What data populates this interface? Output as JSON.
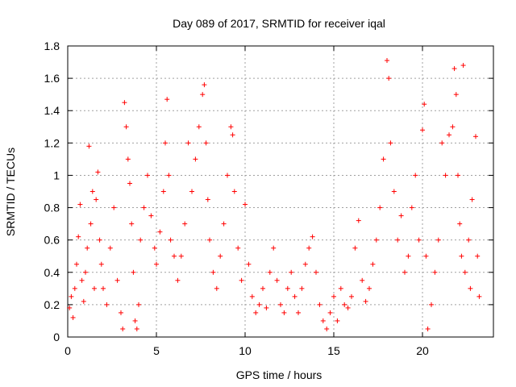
{
  "chart_data": {
    "type": "scatter",
    "title": "Day 089 of 2017, SRMTID for receiver iqal",
    "xlabel": "GPS time / hours",
    "ylabel": "SRMTID / TECUs",
    "xlim": [
      0,
      24
    ],
    "ylim": [
      0,
      1.8
    ],
    "xticks": [
      0,
      5,
      10,
      15,
      20
    ],
    "xtick_labels": [
      "0",
      "5",
      "10",
      "15",
      "20"
    ],
    "yticks": [
      0,
      0.2,
      0.4,
      0.6,
      0.8,
      1.0,
      1.2,
      1.4,
      1.6,
      1.8
    ],
    "ytick_labels": [
      "0",
      "0.2",
      "0.4",
      "0.6",
      "0.8",
      "1",
      "1.2",
      "1.4",
      "1.6",
      "1.8"
    ],
    "grid": true,
    "marker": "plus",
    "color": "#ff0000",
    "series": [
      {
        "name": "SRMTID",
        "points": [
          [
            0.1,
            0.18
          ],
          [
            0.2,
            0.25
          ],
          [
            0.3,
            0.12
          ],
          [
            0.4,
            0.3
          ],
          [
            0.5,
            0.45
          ],
          [
            0.6,
            0.62
          ],
          [
            0.7,
            0.82
          ],
          [
            0.8,
            0.35
          ],
          [
            0.9,
            0.22
          ],
          [
            1.0,
            0.4
          ],
          [
            1.1,
            0.55
          ],
          [
            1.2,
            1.18
          ],
          [
            1.3,
            0.7
          ],
          [
            1.4,
            0.9
          ],
          [
            1.5,
            0.3
          ],
          [
            1.6,
            0.85
          ],
          [
            1.7,
            1.02
          ],
          [
            1.8,
            0.6
          ],
          [
            1.9,
            0.45
          ],
          [
            2.0,
            0.3
          ],
          [
            2.2,
            0.2
          ],
          [
            2.4,
            0.55
          ],
          [
            2.6,
            0.8
          ],
          [
            2.8,
            0.35
          ],
          [
            3.0,
            0.15
          ],
          [
            3.1,
            0.05
          ],
          [
            3.2,
            1.45
          ],
          [
            3.3,
            1.3
          ],
          [
            3.4,
            1.1
          ],
          [
            3.5,
            0.95
          ],
          [
            3.6,
            0.7
          ],
          [
            3.7,
            0.4
          ],
          [
            3.8,
            0.1
          ],
          [
            3.9,
            0.05
          ],
          [
            4.0,
            0.2
          ],
          [
            4.1,
            0.6
          ],
          [
            4.3,
            0.8
          ],
          [
            4.5,
            1.0
          ],
          [
            4.7,
            0.75
          ],
          [
            4.9,
            0.55
          ],
          [
            5.0,
            0.45
          ],
          [
            5.2,
            0.65
          ],
          [
            5.4,
            0.9
          ],
          [
            5.5,
            1.2
          ],
          [
            5.6,
            1.47
          ],
          [
            5.7,
            1.0
          ],
          [
            5.8,
            0.6
          ],
          [
            6.0,
            0.5
          ],
          [
            6.2,
            0.35
          ],
          [
            6.4,
            0.5
          ],
          [
            6.6,
            0.7
          ],
          [
            6.8,
            1.2
          ],
          [
            7.0,
            0.9
          ],
          [
            7.2,
            1.1
          ],
          [
            7.4,
            1.3
          ],
          [
            7.6,
            1.5
          ],
          [
            7.7,
            1.56
          ],
          [
            7.8,
            1.2
          ],
          [
            7.9,
            0.85
          ],
          [
            8.0,
            0.6
          ],
          [
            8.2,
            0.4
          ],
          [
            8.4,
            0.3
          ],
          [
            8.6,
            0.5
          ],
          [
            8.8,
            0.7
          ],
          [
            9.0,
            1.0
          ],
          [
            9.2,
            1.3
          ],
          [
            9.3,
            1.25
          ],
          [
            9.4,
            0.9
          ],
          [
            9.6,
            0.55
          ],
          [
            9.8,
            0.35
          ],
          [
            10.0,
            0.82
          ],
          [
            10.2,
            0.45
          ],
          [
            10.4,
            0.25
          ],
          [
            10.6,
            0.15
          ],
          [
            10.8,
            0.2
          ],
          [
            11.0,
            0.3
          ],
          [
            11.2,
            0.18
          ],
          [
            11.4,
            0.4
          ],
          [
            11.6,
            0.55
          ],
          [
            11.8,
            0.35
          ],
          [
            12.0,
            0.2
          ],
          [
            12.2,
            0.15
          ],
          [
            12.4,
            0.3
          ],
          [
            12.6,
            0.4
          ],
          [
            12.8,
            0.25
          ],
          [
            13.0,
            0.15
          ],
          [
            13.2,
            0.3
          ],
          [
            13.4,
            0.45
          ],
          [
            13.6,
            0.55
          ],
          [
            13.8,
            0.62
          ],
          [
            14.0,
            0.4
          ],
          [
            14.2,
            0.2
          ],
          [
            14.4,
            0.1
          ],
          [
            14.6,
            0.05
          ],
          [
            14.8,
            0.15
          ],
          [
            15.0,
            0.25
          ],
          [
            15.2,
            0.1
          ],
          [
            15.4,
            0.3
          ],
          [
            15.6,
            0.2
          ],
          [
            15.8,
            0.18
          ],
          [
            16.0,
            0.25
          ],
          [
            16.2,
            0.55
          ],
          [
            16.4,
            0.72
          ],
          [
            16.6,
            0.35
          ],
          [
            16.8,
            0.22
          ],
          [
            17.0,
            0.3
          ],
          [
            17.2,
            0.45
          ],
          [
            17.4,
            0.6
          ],
          [
            17.6,
            0.8
          ],
          [
            17.8,
            1.1
          ],
          [
            18.0,
            1.71
          ],
          [
            18.1,
            1.6
          ],
          [
            18.2,
            1.2
          ],
          [
            18.4,
            0.9
          ],
          [
            18.6,
            0.6
          ],
          [
            18.8,
            0.75
          ],
          [
            19.0,
            0.4
          ],
          [
            19.2,
            0.5
          ],
          [
            19.4,
            0.8
          ],
          [
            19.6,
            1.0
          ],
          [
            19.8,
            0.6
          ],
          [
            20.0,
            1.28
          ],
          [
            20.1,
            1.44
          ],
          [
            20.2,
            0.5
          ],
          [
            20.3,
            0.05
          ],
          [
            20.5,
            0.2
          ],
          [
            20.7,
            0.4
          ],
          [
            20.9,
            0.6
          ],
          [
            21.1,
            1.2
          ],
          [
            21.3,
            1.0
          ],
          [
            21.5,
            1.25
          ],
          [
            21.7,
            1.3
          ],
          [
            21.8,
            1.66
          ],
          [
            21.9,
            1.5
          ],
          [
            22.0,
            1.0
          ],
          [
            22.1,
            0.7
          ],
          [
            22.2,
            0.5
          ],
          [
            22.3,
            1.68
          ],
          [
            22.4,
            0.4
          ],
          [
            22.6,
            0.6
          ],
          [
            22.7,
            0.3
          ],
          [
            22.8,
            0.85
          ],
          [
            23.0,
            1.24
          ],
          [
            23.1,
            0.5
          ],
          [
            23.2,
            0.25
          ]
        ]
      }
    ]
  }
}
